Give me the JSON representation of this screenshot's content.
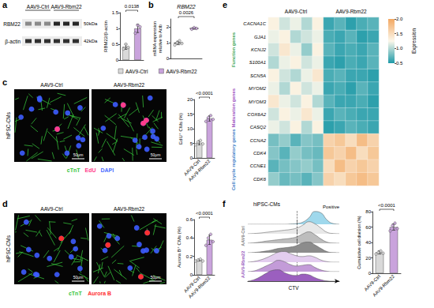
{
  "chart_data": [
    {
      "type": "blot",
      "panel": "a",
      "columns": [
        "AAV9-Ctrl",
        "AAV9-Rbm22"
      ],
      "rows": [
        {
          "label": "RBM22",
          "size_label": "50kDa"
        },
        {
          "label": "β-actin",
          "size_label": "42kDa"
        }
      ]
    },
    {
      "type": "bar",
      "ylabel": "RBM22/β-actin",
      "categories": [
        null,
        null
      ],
      "values": [
        0.42,
        1.0
      ],
      "errors": [
        0.08,
        0.13
      ],
      "points": [
        [
          0.35,
          0.5,
          0.4
        ],
        [
          0.85,
          1.1,
          1.05
        ]
      ],
      "colors": [
        "#d9d9d9",
        "#c9a3dc"
      ],
      "ylim": [
        0,
        1.5
      ],
      "yticks": [
        0,
        0.5,
        1,
        1.5
      ],
      "annotation": "0.0138"
    },
    {
      "type": "dot",
      "panel": "b",
      "title": "RBM22",
      "ylabel": "mRNA expression\nrelative to Actb",
      "categories": [
        null,
        null
      ],
      "values": [
        0.98,
        1.9
      ],
      "errors": [
        0.11,
        0.05
      ],
      "points": [
        [
          0.85,
          1.0,
          1.12,
          0.95
        ],
        [
          1.85,
          1.95,
          1.9
        ]
      ],
      "colors": [
        "#d9d9d9",
        "#c9a3dc"
      ],
      "ylim": [
        0,
        2.5
      ],
      "yticks": [
        0,
        1,
        2
      ],
      "annotation": "0.0026"
    },
    {
      "type": "legend",
      "entries": [
        {
          "name": "AAV9-Ctrl",
          "color": "#d9d9d9"
        },
        {
          "name": "AAV9-Rbm22",
          "color": "#c9a3dc"
        }
      ]
    },
    {
      "type": "micrograph",
      "panel": "c",
      "columns": [
        "AAV9-Ctrl",
        "AAV9-Rbm22"
      ],
      "side_label": "hiPSC-CMs",
      "scale_bar": "50μm",
      "channels": [
        {
          "name": "cTnT",
          "color": "#35c43a"
        },
        {
          "name": "EdU",
          "color": "#ff3d8b"
        },
        {
          "name": "DAPI",
          "color": "#4a6cff"
        }
      ]
    },
    {
      "type": "bar",
      "ylabel": "EdU⁺ CMs (%)",
      "categories": [
        "AAV9-Ctrl",
        "AAV9-Rbm22"
      ],
      "values": [
        5.2,
        13.5
      ],
      "errors": [
        0.7,
        0.9
      ],
      "points": [
        [
          4.5,
          5.5,
          6,
          4.8
        ],
        [
          12.5,
          13.8,
          14.5,
          13.2
        ]
      ],
      "colors": [
        "#d9d9d9",
        "#c9a3dc"
      ],
      "ylim": [
        0,
        20
      ],
      "yticks": [
        0,
        5,
        10,
        15,
        20
      ],
      "annotation": "<0.0001"
    },
    {
      "type": "micrograph",
      "panel": "d",
      "columns": [
        "AAV9-Ctrl",
        "AAV9-Rbm22"
      ],
      "side_label": "hiPSC-CMs",
      "scale_bar": "50μm",
      "channels": [
        {
          "name": "cTnT",
          "color": "#35c43a"
        },
        {
          "name": "Aurora B",
          "color": "#ff3030"
        }
      ]
    },
    {
      "type": "bar",
      "ylabel": "Aurora B⁺ CMs (%)",
      "categories": [
        "AAV9-Ctrl",
        "AAV9-Rbm22"
      ],
      "values": [
        0.16,
        0.38
      ],
      "errors": [
        0.01,
        0.05
      ],
      "points": [
        [
          0.15,
          0.16,
          0.17,
          0.15
        ],
        [
          0.32,
          0.4,
          0.44,
          0.36
        ]
      ],
      "colors": [
        "#d9d9d9",
        "#c9a3dc"
      ],
      "ylim": [
        0,
        0.6
      ],
      "yticks": [
        0,
        0.2,
        0.4,
        0.6
      ],
      "annotation": "<0.0001"
    },
    {
      "type": "heatmap",
      "panel": "e",
      "columns": [
        "AAV9-Ctrl",
        "AAV9-Rbm22"
      ],
      "row_groups": [
        {
          "label": "Function genes",
          "color": "#3aa655",
          "genes": [
            "CACNA1C",
            "GJA1",
            "KCNJ2",
            "S100A1",
            "SCN5A"
          ]
        },
        {
          "label": "Maturation genes",
          "color": "#9b4fc0",
          "genes": [
            "MYOM2",
            "MYOM3",
            "COX6A2",
            "CASQ2"
          ]
        },
        {
          "label": "Cell cycle regulatory genes",
          "color": "#3f7fc8",
          "genes": [
            "CCNA2",
            "CDK4",
            "CCNE1",
            "CDK6"
          ]
        }
      ],
      "values": [
        [
          1.3,
          1.1,
          1.2,
          1.0,
          1.3,
          0.6,
          0.7,
          0.55,
          0.65,
          0.7
        ],
        [
          1.2,
          1.3,
          1.0,
          1.1,
          1.2,
          0.65,
          0.6,
          0.7,
          0.55,
          0.6
        ],
        [
          1.1,
          1.4,
          1.2,
          0.9,
          1.3,
          0.7,
          0.6,
          0.65,
          0.6,
          0.7
        ],
        [
          1.0,
          1.2,
          1.3,
          1.1,
          1.2,
          0.6,
          0.55,
          0.65,
          0.6,
          0.7
        ],
        [
          1.3,
          1.1,
          1.0,
          1.2,
          1.4,
          0.65,
          0.7,
          0.6,
          0.6,
          0.55
        ],
        [
          1.2,
          1.0,
          1.3,
          1.1,
          1.2,
          0.6,
          0.65,
          0.55,
          0.7,
          0.6
        ],
        [
          1.4,
          1.2,
          1.1,
          1.3,
          1.0,
          0.7,
          0.6,
          0.6,
          0.65,
          0.55
        ],
        [
          1.1,
          1.3,
          1.2,
          1.4,
          1.2,
          0.6,
          0.7,
          0.65,
          0.6,
          0.6
        ],
        [
          1.2,
          1.1,
          1.3,
          1.0,
          1.3,
          0.55,
          0.6,
          0.7,
          0.65,
          0.6
        ],
        [
          0.8,
          0.9,
          0.7,
          0.85,
          0.8,
          1.6,
          1.7,
          1.5,
          1.8,
          1.6
        ],
        [
          0.85,
          0.7,
          0.9,
          0.8,
          0.75,
          1.7,
          1.6,
          1.8,
          1.5,
          1.7
        ],
        [
          0.7,
          0.8,
          0.85,
          0.9,
          0.8,
          1.5,
          1.8,
          1.6,
          1.7,
          1.6
        ],
        [
          0.9,
          0.75,
          0.8,
          0.7,
          0.85,
          1.6,
          1.5,
          1.7,
          1.8,
          1.7
        ]
      ],
      "colorbar": {
        "title": "Expression",
        "range": [
          0.5,
          2.0
        ],
        "ticks": [
          0.5,
          {
            "value": 1,
            "label": "1.0"
          },
          1.5,
          {
            "value": 2,
            "label": "2.0"
          }
        ],
        "colors": [
          "#1e9aa8",
          "#fbf7ea",
          "#f3a862"
        ]
      }
    },
    {
      "type": "ridgeline",
      "panel": "f",
      "title": "hiPSC-CMs",
      "xlabel": "CTV",
      "x": [
        0,
        1,
        2,
        3,
        4,
        5,
        6,
        7,
        8,
        9,
        10,
        11,
        12,
        13,
        14,
        15
      ],
      "xlim": [
        0,
        15
      ],
      "ylim": [
        0,
        1
      ],
      "gate": 8,
      "tick_labels": false,
      "tracks": [
        {
          "label": "Positive",
          "color": "#9fd8ec",
          "values": [
            0,
            0,
            0,
            0,
            0,
            0,
            0,
            0.02,
            0.05,
            0.15,
            0.45,
            0.9,
            0.8,
            0.3,
            0.05,
            0
          ]
        },
        {
          "group": "AAV9-Ctrl",
          "color": "#e8e8e8",
          "values": [
            0,
            0.02,
            0.05,
            0.1,
            0.15,
            0.2,
            0.25,
            0.3,
            0.4,
            0.6,
            0.85,
            0.7,
            0.4,
            0.1,
            0.02,
            0
          ]
        },
        {
          "group": "AAV9-Ctrl",
          "color": "#bdbdbd",
          "values": [
            0,
            0.03,
            0.08,
            0.15,
            0.2,
            0.25,
            0.3,
            0.35,
            0.45,
            0.65,
            0.8,
            0.6,
            0.3,
            0.08,
            0.01,
            0
          ]
        },
        {
          "group": "AAV9-Ctrl",
          "color": "#8c8c8c",
          "values": [
            0,
            0.02,
            0.06,
            0.12,
            0.2,
            0.3,
            0.35,
            0.4,
            0.5,
            0.7,
            0.75,
            0.55,
            0.3,
            0.08,
            0.01,
            0
          ]
        },
        {
          "group": "AAV9-Rbm22",
          "color": "#e3cdef",
          "values": [
            0,
            0.05,
            0.15,
            0.3,
            0.5,
            0.7,
            0.75,
            0.6,
            0.45,
            0.4,
            0.45,
            0.35,
            0.15,
            0.04,
            0,
            0
          ]
        },
        {
          "group": "AAV9-Rbm22",
          "color": "#c39bd8",
          "values": [
            0,
            0.05,
            0.2,
            0.4,
            0.6,
            0.8,
            0.7,
            0.5,
            0.4,
            0.45,
            0.5,
            0.3,
            0.12,
            0.03,
            0,
            0
          ]
        },
        {
          "group": "AAV9-Rbm22",
          "color": "#9b5fbf",
          "values": [
            0,
            0.1,
            0.3,
            0.55,
            0.75,
            0.8,
            0.6,
            0.45,
            0.4,
            0.5,
            0.45,
            0.25,
            0.1,
            0.02,
            0,
            0
          ]
        }
      ],
      "groups": [
        {
          "label": "AAV9-Ctrl",
          "color": "#7f7f7f"
        },
        {
          "label": "AAV9-Rbm22",
          "color": "#9b5fbf"
        }
      ]
    },
    {
      "type": "bar",
      "ylabel": "Cumulative cell division (%)",
      "categories": [
        "AAV9-Ctrl",
        "AAV9-Rbm22"
      ],
      "values": [
        27,
        60
      ],
      "errors": [
        2,
        4
      ],
      "points": [
        [
          25,
          27,
          29,
          26
        ],
        [
          55,
          62,
          65,
          58
        ]
      ],
      "colors": [
        "#d9d9d9",
        "#c9a3dc"
      ],
      "ylim": [
        0,
        80
      ],
      "yticks": [
        0,
        20,
        40,
        60,
        80
      ],
      "annotation": "<0.0001"
    }
  ]
}
